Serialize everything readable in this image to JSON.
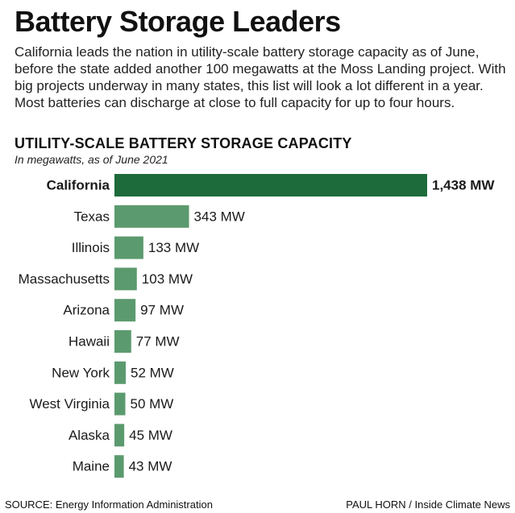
{
  "title": "Battery Storage Leaders",
  "intro": "California leads the nation in utility-scale battery storage capacity as of June, before the state added another 100 megawatts at the Moss Landing project. With big projects underway in many states, this list will look a lot different in a year. Most batteries can discharge at close to full capacity for up to four hours.",
  "footer": {
    "source": "SOURCE: Energy Information Administration",
    "credit": "PAUL HORN / Inside Climate News"
  },
  "colors": {
    "highlight_bar": "#1d6b3a",
    "bar": "#5b9a6e",
    "text": "#1a1a1a"
  },
  "chart_data": {
    "type": "bar",
    "orientation": "horizontal",
    "title": "UTILITY-SCALE BATTERY STORAGE CAPACITY",
    "subtitle": "In megawatts, as of June 2021",
    "xlabel": "",
    "ylabel": "",
    "categories": [
      "California",
      "Texas",
      "Illinois",
      "Massachusetts",
      "Arizona",
      "Hawaii",
      "New York",
      "West Virginia",
      "Alaska",
      "Maine"
    ],
    "values": [
      1438,
      343,
      133,
      103,
      97,
      77,
      52,
      50,
      45,
      43
    ],
    "value_labels": [
      "1,438 MW",
      "343 MW",
      "133 MW",
      "103 MW",
      "97 MW",
      "77 MW",
      "52 MW",
      "50 MW",
      "45 MW",
      "43 MW"
    ],
    "highlight": "California",
    "xlim": [
      0,
      1438
    ]
  }
}
